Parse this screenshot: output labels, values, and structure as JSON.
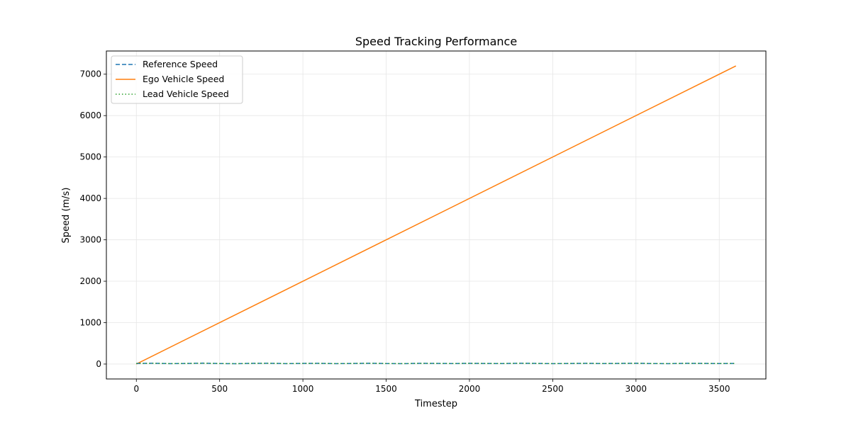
{
  "chart_data": {
    "type": "line",
    "title": "Speed Tracking Performance",
    "xlabel": "Timestep",
    "ylabel": "Speed (m/s)",
    "xlim": [
      -180,
      3780
    ],
    "ylim": [
      -360,
      7560
    ],
    "xticks": [
      0,
      500,
      1000,
      1500,
      2000,
      2500,
      3000,
      3500
    ],
    "yticks": [
      0,
      1000,
      2000,
      3000,
      4000,
      5000,
      6000,
      7000
    ],
    "grid": true,
    "legend_position": "top-left",
    "series": [
      {
        "name": "Reference Speed",
        "color": "#1f77b4",
        "style": "dashed",
        "x": [
          0,
          100,
          200,
          300,
          400,
          500,
          600,
          700,
          800,
          900,
          1000,
          1100,
          1200,
          1300,
          1400,
          1500,
          1600,
          1700,
          1800,
          1900,
          2000,
          2100,
          2200,
          2300,
          2400,
          2500,
          2600,
          2700,
          2800,
          2900,
          3000,
          3100,
          3200,
          3300,
          3400,
          3500,
          3600
        ],
        "y": [
          15,
          20,
          10,
          14,
          22,
          12,
          8,
          18,
          20,
          10,
          16,
          18,
          10,
          14,
          20,
          12,
          10,
          18,
          16,
          12,
          18,
          14,
          12,
          20,
          16,
          10,
          14,
          18,
          12,
          16,
          20,
          12,
          10,
          18,
          16,
          12,
          15
        ]
      },
      {
        "name": "Ego Vehicle Speed",
        "color": "#ff7f0e",
        "style": "solid",
        "x": [
          0,
          3600
        ],
        "y": [
          0,
          7200
        ]
      },
      {
        "name": "Lead Vehicle Speed",
        "color": "#2ca02c",
        "style": "dotted",
        "x": [
          0,
          100,
          200,
          300,
          400,
          500,
          600,
          700,
          800,
          900,
          1000,
          1100,
          1200,
          1300,
          1400,
          1500,
          1600,
          1700,
          1800,
          1900,
          2000,
          2100,
          2200,
          2300,
          2400,
          2500,
          2600,
          2700,
          2800,
          2900,
          3000,
          3100,
          3200,
          3300,
          3400,
          3500,
          3600
        ],
        "y": [
          15,
          18,
          12,
          15,
          20,
          13,
          10,
          17,
          19,
          11,
          15,
          17,
          11,
          15,
          19,
          13,
          11,
          17,
          15,
          13,
          17,
          15,
          13,
          19,
          15,
          11,
          15,
          17,
          13,
          15,
          19,
          13,
          11,
          17,
          15,
          13,
          15
        ]
      }
    ]
  }
}
